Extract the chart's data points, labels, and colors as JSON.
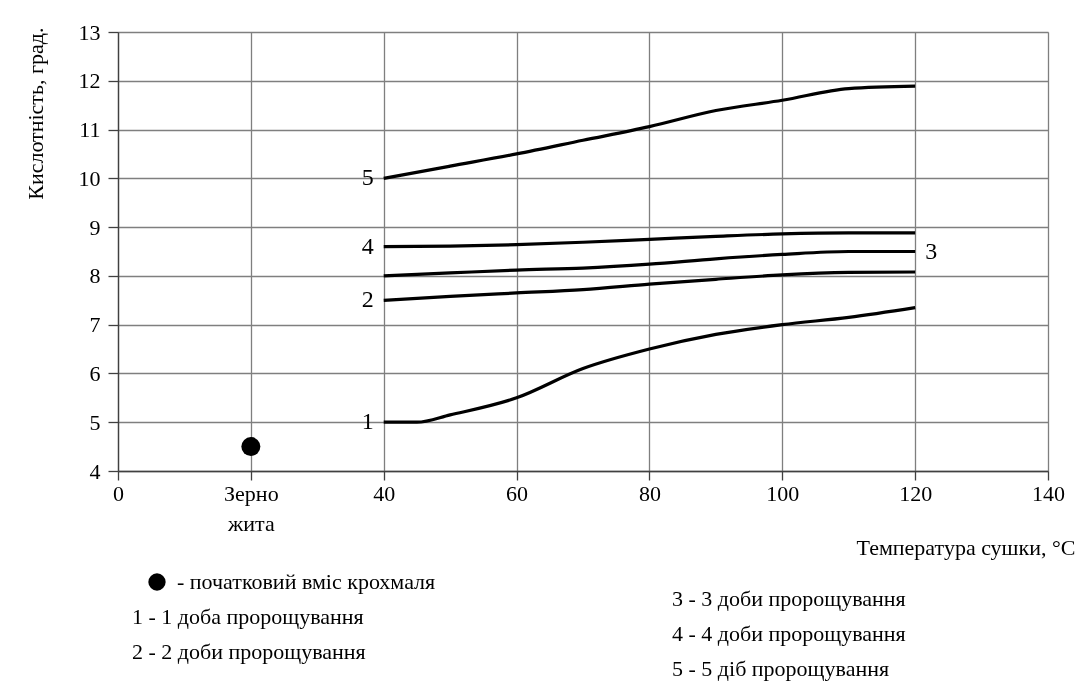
{
  "chart_data": {
    "type": "line",
    "xlabel": "Температура сушки, °C",
    "ylabel": "Кислотність, град.",
    "xlim": [
      0,
      140
    ],
    "xticks": [
      0,
      {
        "value": 20,
        "label": "Зерно\nжита"
      },
      40,
      60,
      80,
      100,
      120,
      140
    ],
    "ylim": [
      4,
      13
    ],
    "yticks": [
      4,
      5,
      6,
      7,
      8,
      9,
      10,
      11,
      12,
      13
    ],
    "grid": true,
    "legend": "bottom left",
    "series": [
      {
        "type": "scatter",
        "name": "- початковий вміс крохмаля",
        "color": "#000000",
        "x": [
          20
        ],
        "values": [
          4.5
        ]
      },
      {
        "name": "1",
        "color": "#000000",
        "x": [
          40,
          45,
          50,
          60,
          70,
          80,
          90,
          100,
          110,
          120
        ],
        "values": [
          5.0,
          5.0,
          5.15,
          5.5,
          6.1,
          6.5,
          6.8,
          7.0,
          7.15,
          7.35
        ]
      },
      {
        "name": "2",
        "color": "#000000",
        "x": [
          40,
          50,
          60,
          70,
          80,
          90,
          100,
          110,
          120
        ],
        "values": [
          7.5,
          7.58,
          7.65,
          7.72,
          7.83,
          7.93,
          8.02,
          8.07,
          8.08
        ]
      },
      {
        "name": "3",
        "color": "#000000",
        "x": [
          40,
          50,
          60,
          70,
          80,
          90,
          100,
          110,
          120
        ],
        "values": [
          8.0,
          8.06,
          8.12,
          8.16,
          8.24,
          8.35,
          8.44,
          8.5,
          8.5
        ]
      },
      {
        "name": "4",
        "color": "#000000",
        "x": [
          40,
          50,
          60,
          70,
          80,
          90,
          100,
          110,
          120
        ],
        "values": [
          8.6,
          8.61,
          8.64,
          8.69,
          8.75,
          8.81,
          8.86,
          8.88,
          8.88
        ]
      },
      {
        "name": "5",
        "color": "#000000",
        "x": [
          40,
          50,
          60,
          70,
          80,
          90,
          100,
          110,
          120
        ],
        "values": [
          10.0,
          10.25,
          10.5,
          10.78,
          11.06,
          11.39,
          11.6,
          11.84,
          11.89
        ]
      }
    ],
    "annotations": [
      "1 - 1 доба пророщування",
      "2 - 2 доби пророщування",
      "3 - 3 доби пророщування",
      "4 - 4 доби пророщування",
      "5 - 5 діб пророщування"
    ]
  }
}
